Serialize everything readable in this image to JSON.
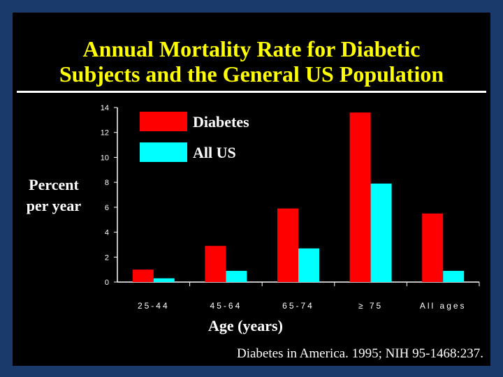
{
  "chart_data": {
    "type": "bar",
    "title": "Annual Mortality Rate for Diabetic Subjects and the General US Population",
    "title_lines": [
      "Annual Mortality Rate for Diabetic",
      "Subjects and the General US Population"
    ],
    "ylabel_lines": [
      "Percent",
      "per year"
    ],
    "xlabel": "Age (years)",
    "categories": [
      "25-44",
      "45-64",
      "65-74",
      "≥ 75",
      "All ages"
    ],
    "series": [
      {
        "name": "Diabetes",
        "color": "#ff0000",
        "values": [
          1.0,
          2.9,
          5.9,
          13.6,
          5.5
        ]
      },
      {
        "name": "All US",
        "color": "#00ffff",
        "values": [
          0.3,
          0.9,
          2.7,
          7.9,
          0.9
        ]
      }
    ],
    "ylim": [
      0,
      14
    ],
    "yticks": [
      0,
      2,
      4,
      6,
      8,
      10,
      12,
      14
    ],
    "grid": false,
    "legend": "top-left",
    "source": "Diabetes in America. 1995; NIH 95-1468:237."
  },
  "colors": {
    "background": "#000000",
    "border": "#1a3a6b",
    "title": "#ffff00",
    "text": "#ffffff"
  }
}
